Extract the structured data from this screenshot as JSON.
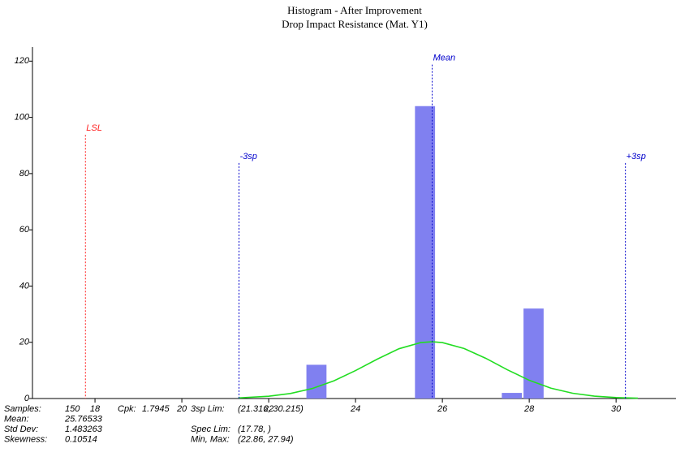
{
  "chart_data": {
    "type": "histogram",
    "title": "Histogram - After Improvement",
    "subtitle": "Drop Impact Resistance (Mat. Y1)",
    "bins": [
      22.85,
      23.35,
      23.85,
      24.35,
      24.85,
      25.35,
      25.85,
      26.35,
      26.85,
      27.35,
      27.85,
      28.35
    ],
    "values": [
      12,
      0,
      0,
      0,
      0,
      104,
      0,
      0,
      0,
      2,
      32
    ],
    "color": "#8080f0",
    "xlim": [
      16.56,
      31.38
    ],
    "xticks": [
      18,
      20,
      22,
      24,
      26,
      28,
      30
    ],
    "ylim": [
      0,
      125
    ],
    "yticks": [
      0,
      20,
      40,
      60,
      80,
      100,
      120
    ],
    "curve": {
      "color": "#22dd22",
      "x": [
        21.3,
        22,
        22.5,
        23,
        23.5,
        24,
        24.5,
        25,
        25.5,
        25.765,
        26,
        26.5,
        27,
        27.5,
        28,
        28.5,
        29,
        29.5,
        30,
        30.5
      ],
      "values": [
        0.22,
        0.8,
        1.79,
        3.55,
        6.29,
        9.94,
        14.0,
        17.7,
        19.9,
        20.2,
        19.9,
        17.8,
        14.3,
        10.2,
        6.48,
        3.69,
        1.87,
        0.85,
        0.34,
        0.12
      ]
    },
    "reference_lines": [
      {
        "label": "LSL",
        "value": 17.78,
        "color": "#ff2020"
      },
      {
        "label": "-3sp",
        "value": 21.316,
        "color": "#0000cc"
      },
      {
        "label": "Mean",
        "value": 25.76533,
        "color": "#0000cc"
      },
      {
        "label": "+3sp",
        "value": 30.215,
        "color": "#0000cc"
      }
    ],
    "stats": [
      [
        {
          "label": "Samples:",
          "value": "150"
        },
        {
          "label": "Cpk:",
          "value": "1.7945"
        },
        {
          "label": "3sp Lim:",
          "value": "(21.316, 30.215)"
        }
      ],
      [
        {
          "label": "Mean:",
          "value": "25.76533"
        }
      ],
      [
        {
          "label": "Std Dev:",
          "value": "1.483263"
        },
        null,
        {
          "label": "Spec Lim:",
          "value": "(17.78, )"
        }
      ],
      [
        {
          "label": "Skewness:",
          "value": "0.10514"
        },
        null,
        {
          "label": "Min, Max:",
          "value": "(22.86, 27.94)"
        }
      ]
    ]
  }
}
